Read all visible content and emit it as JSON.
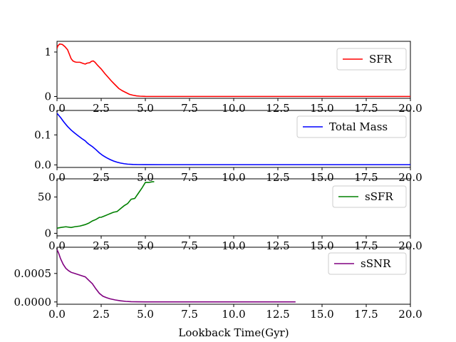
{
  "figure": {
    "xlabel": "Lookback Time(Gyr)"
  },
  "chart_data": [
    {
      "type": "line",
      "name": "SFR",
      "color": "#ff0000",
      "xlim": [
        0,
        20
      ],
      "ylim": [
        -0.04,
        1.24
      ],
      "x_ticks": [
        0,
        2.5,
        5,
        7.5,
        10,
        12.5,
        15,
        17.5,
        20
      ],
      "x_tick_labels": [
        "0.0",
        "2.5",
        "5.0",
        "7.5",
        "10.0",
        "12.5",
        "15.0",
        "17.5",
        "20.0"
      ],
      "y_ticks": [
        0,
        1
      ],
      "y_tick_labels": [
        "0",
        "1"
      ],
      "legend": "upper right",
      "series": [
        {
          "name": "SFR",
          "x": [
            0,
            0.05,
            0.15,
            0.3,
            0.45,
            0.6,
            0.7,
            0.8,
            0.9,
            1.0,
            1.1,
            1.3,
            1.5,
            1.6,
            1.7,
            1.85,
            1.95,
            2.05,
            2.15,
            2.3,
            2.5,
            2.7,
            2.9,
            3.1,
            3.3,
            3.5,
            3.7,
            3.9,
            4.1,
            4.3,
            4.5,
            4.7,
            5.0,
            6,
            8,
            10,
            12,
            14,
            16,
            18,
            20
          ],
          "y": [
            1.08,
            1.14,
            1.18,
            1.17,
            1.12,
            1.05,
            0.95,
            0.85,
            0.8,
            0.78,
            0.77,
            0.77,
            0.74,
            0.73,
            0.75,
            0.76,
            0.79,
            0.8,
            0.77,
            0.7,
            0.62,
            0.52,
            0.43,
            0.34,
            0.26,
            0.18,
            0.13,
            0.09,
            0.05,
            0.03,
            0.015,
            0.008,
            0.003,
            0.002,
            0.002,
            0.002,
            0.002,
            0.002,
            0.002,
            0.002,
            0.002
          ]
        }
      ]
    },
    {
      "type": "line",
      "name": "Total Mass",
      "color": "#0000ff",
      "xlim": [
        0,
        20
      ],
      "ylim": [
        -0.0085,
        0.1815
      ],
      "x_ticks": [
        0,
        2.5,
        5,
        7.5,
        10,
        12.5,
        15,
        17.5,
        20
      ],
      "x_tick_labels": [
        "0.0",
        "2.5",
        "5.0",
        "7.5",
        "10.0",
        "12.5",
        "15.0",
        "17.5",
        "20.0"
      ],
      "y_ticks": [
        0,
        0.1
      ],
      "y_tick_labels": [
        "0.0",
        "0.1"
      ],
      "legend": "upper right",
      "series": [
        {
          "name": "Total Mass",
          "x": [
            0,
            0.2,
            0.4,
            0.6,
            0.8,
            1.0,
            1.2,
            1.4,
            1.6,
            1.7,
            1.8,
            2.0,
            2.2,
            2.4,
            2.6,
            2.8,
            3.0,
            3.2,
            3.4,
            3.6,
            3.8,
            4.0,
            4.3,
            4.6,
            5.0,
            6,
            8,
            10,
            12,
            14,
            16,
            18,
            20
          ],
          "y": [
            0.172,
            0.158,
            0.142,
            0.128,
            0.116,
            0.106,
            0.097,
            0.088,
            0.08,
            0.074,
            0.069,
            0.061,
            0.051,
            0.04,
            0.031,
            0.024,
            0.018,
            0.013,
            0.009,
            0.006,
            0.004,
            0.0025,
            0.0015,
            0.001,
            0.0008,
            0.0007,
            0.0007,
            0.0007,
            0.0007,
            0.0007,
            0.0007,
            0.0007,
            0.0007
          ]
        }
      ]
    },
    {
      "type": "line",
      "name": "sSFR",
      "color": "#008000",
      "xlim": [
        0,
        20
      ],
      "ylim": [
        -3.5,
        75
      ],
      "x_ticks": [
        0,
        2.5,
        5,
        7.5,
        10,
        12.5,
        15,
        17.5,
        20
      ],
      "x_tick_labels": [
        "0.0",
        "2.5",
        "5.0",
        "7.5",
        "10.0",
        "12.5",
        "15.0",
        "17.5",
        "20.0"
      ],
      "y_ticks": [
        0,
        50
      ],
      "y_tick_labels": [
        "0",
        "50"
      ],
      "legend": "upper right",
      "series": [
        {
          "name": "sSFR",
          "x": [
            0,
            0.2,
            0.5,
            0.8,
            1.0,
            1.3,
            1.6,
            1.8,
            2.0,
            2.2,
            2.4,
            2.5,
            2.7,
            2.9,
            3.0,
            3.2,
            3.4,
            3.6,
            3.8,
            4.0,
            4.2,
            4.4,
            4.6,
            4.8,
            5.0,
            5.2,
            5.4,
            5.5
          ],
          "y": [
            7,
            8,
            9,
            8,
            9,
            10,
            12,
            14,
            17,
            19,
            22,
            22,
            24,
            26,
            27,
            29,
            30,
            34,
            38,
            41,
            47,
            48,
            55,
            62,
            70,
            70,
            71,
            71
          ]
        }
      ]
    },
    {
      "type": "line",
      "name": "sSNR",
      "color": "#800080",
      "xlim": [
        0,
        20
      ],
      "ylim": [
        -4e-05,
        0.00096
      ],
      "x_ticks": [
        0,
        2.5,
        5,
        7.5,
        10,
        12.5,
        15,
        17.5,
        20
      ],
      "x_tick_labels": [
        "0.0",
        "2.5",
        "5.0",
        "7.5",
        "10.0",
        "12.5",
        "15.0",
        "17.5",
        "20.0"
      ],
      "y_ticks": [
        0,
        0.0005
      ],
      "y_tick_labels": [
        "0.0000",
        "0.0005"
      ],
      "legend": "upper right",
      "series": [
        {
          "name": "sSNR",
          "x": [
            0,
            0.1,
            0.2,
            0.35,
            0.5,
            0.65,
            0.8,
            1.0,
            1.2,
            1.4,
            1.6,
            1.8,
            2.0,
            2.2,
            2.4,
            2.6,
            2.8,
            3.0,
            3.3,
            3.6,
            3.9,
            4.2,
            4.5,
            5.0,
            6,
            8,
            10,
            12,
            13.5
          ],
          "y": [
            0.00092,
            0.00085,
            0.00076,
            0.00066,
            0.00059,
            0.00055,
            0.00052,
            0.0005,
            0.00048,
            0.00046,
            0.00044,
            0.00038,
            0.00032,
            0.00023,
            0.00015,
            0.0001,
            7.5e-05,
            5.5e-05,
            3.5e-05,
            2e-05,
            1e-05,
            5e-06,
            3e-06,
            2e-06,
            2e-06,
            2e-06,
            2e-06,
            2e-06,
            2e-06
          ]
        }
      ]
    }
  ]
}
